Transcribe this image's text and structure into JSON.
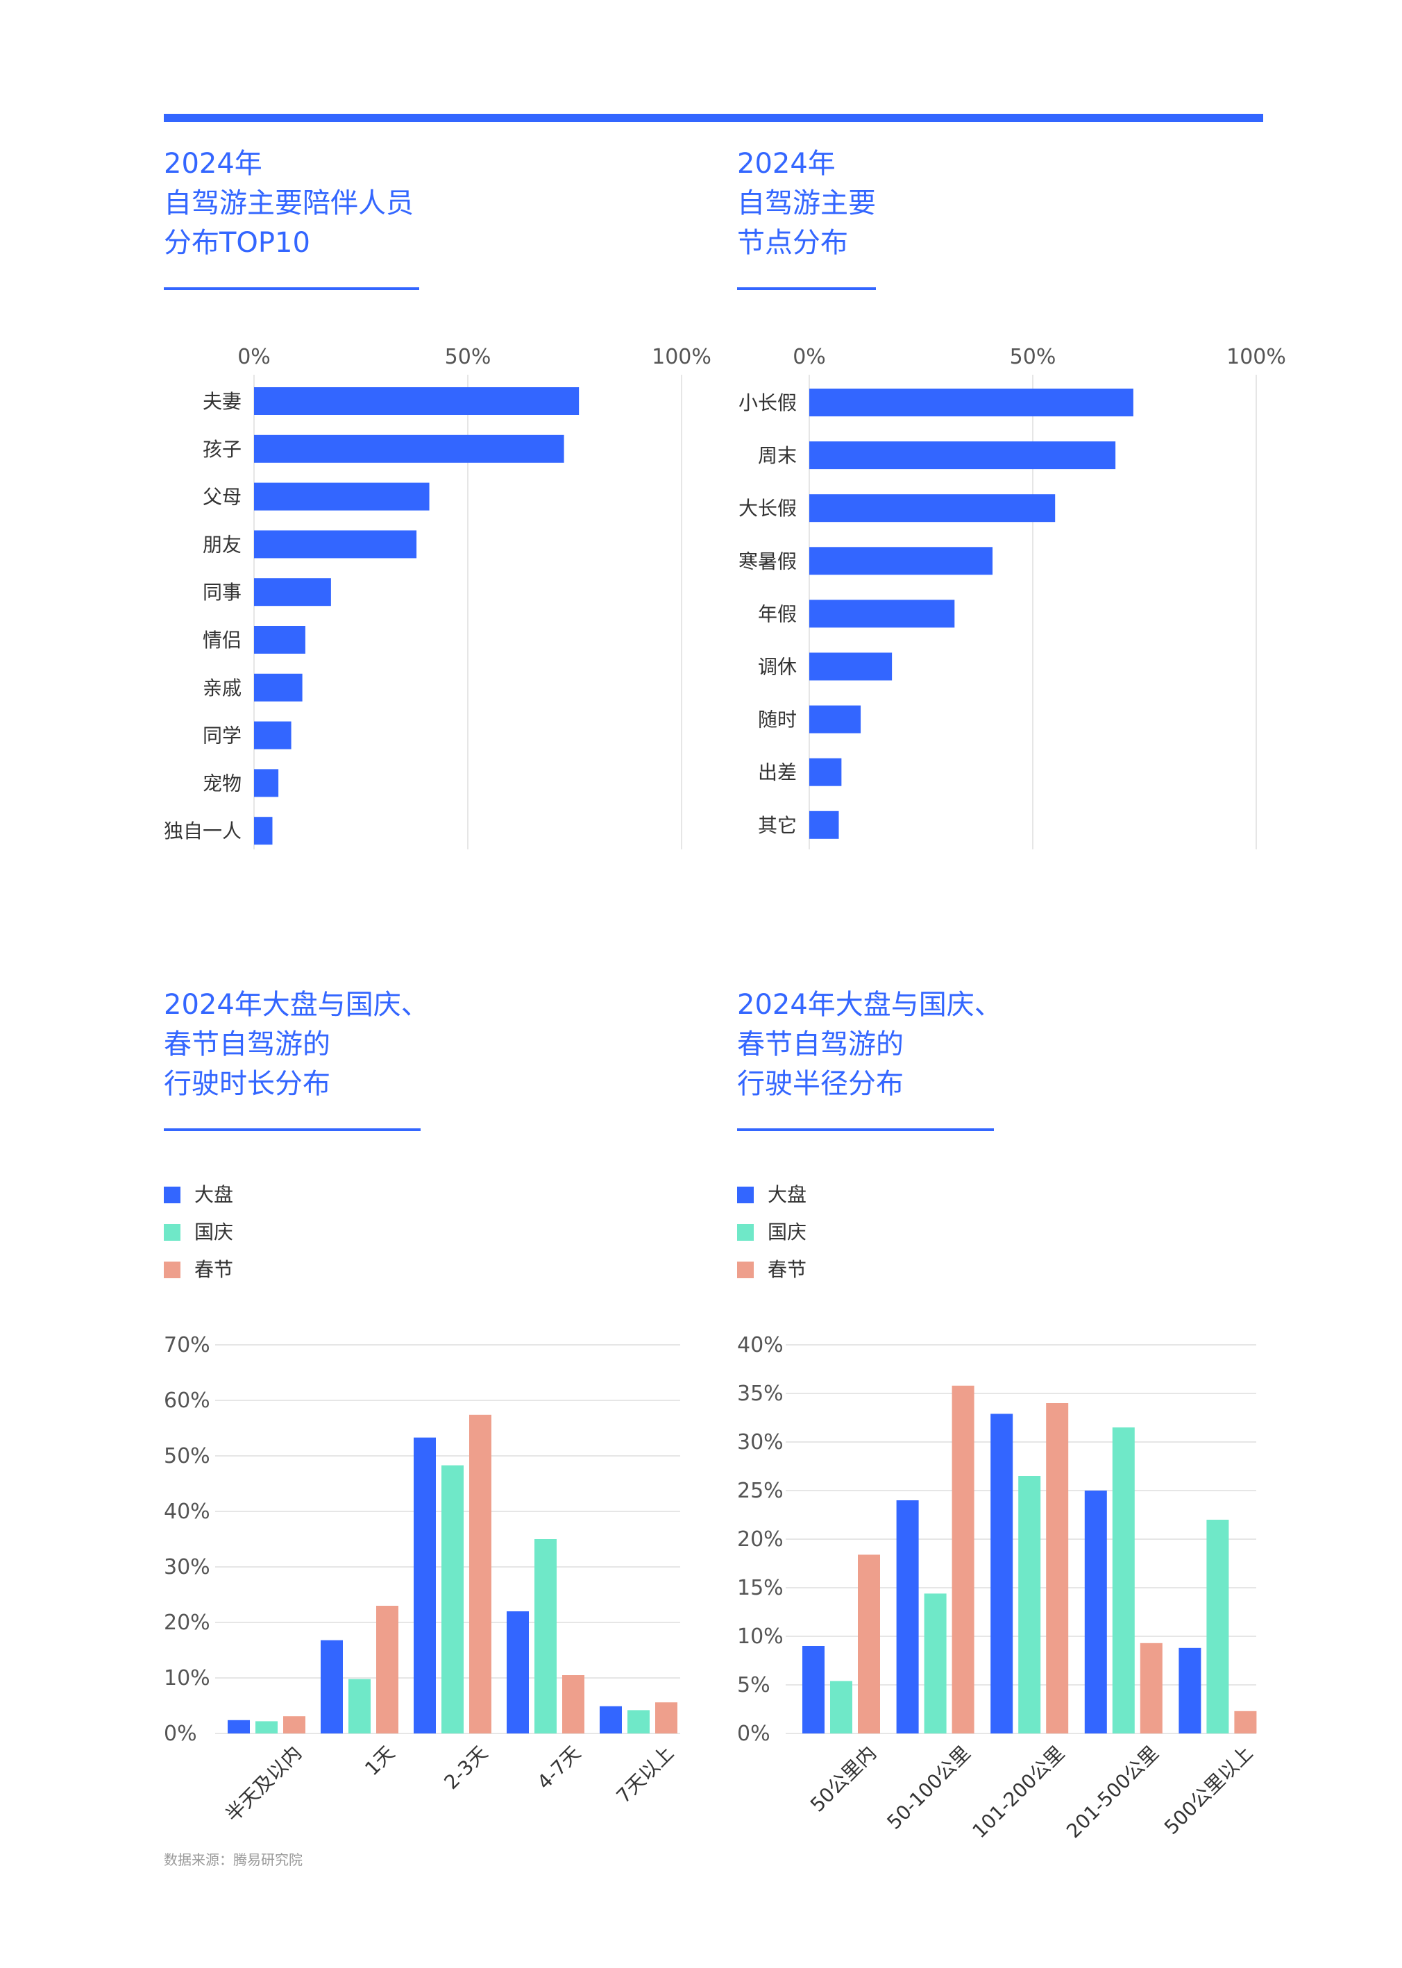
{
  "source": "数据来源：腾易研究院",
  "colors": {
    "accent": "#3366FF",
    "dapan": "#3366FF",
    "guoqing": "#6FE8C8",
    "chunjie": "#EE9F8C",
    "grid": "#E6E6E6",
    "text": "#555555"
  },
  "chart_data": [
    {
      "type": "bar",
      "orientation": "horizontal",
      "title_lines": [
        "2024年",
        "自驾游主要陪伴人员",
        "分布TOP10"
      ],
      "categories": [
        "夫妻",
        "孩子",
        "父母",
        "朋友",
        "同事",
        "情侣",
        "亲戚",
        "同学",
        "宠物",
        "独自一人"
      ],
      "values": [
        76,
        72.5,
        41,
        38,
        18,
        12,
        11.3,
        8.7,
        5.7,
        4.3
      ],
      "ticks": [
        "0%",
        "50%",
        "100%"
      ],
      "xlim": [
        0,
        100
      ],
      "grid": true
    },
    {
      "type": "bar",
      "orientation": "horizontal",
      "title_lines": [
        "2024年",
        "自驾游主要",
        "节点分布"
      ],
      "categories": [
        "小长假",
        "周末",
        "大长假",
        "寒暑假",
        "年假",
        "调休",
        "随时",
        "出差",
        "其它"
      ],
      "values": [
        72.5,
        68.5,
        55,
        41,
        32.5,
        18.5,
        11.5,
        7.2,
        6.6
      ],
      "ticks": [
        "0%",
        "50%",
        "100%"
      ],
      "xlim": [
        0,
        100
      ],
      "grid": true
    },
    {
      "type": "bar",
      "title_lines": [
        "2024年大盘与国庆、",
        "春节自驾游的",
        "行驶时长分布"
      ],
      "categories": [
        "半天及以内",
        "1天",
        "2-3天",
        "4-7天",
        "7天以上"
      ],
      "series": [
        {
          "name": "大盘",
          "values": [
            2.4,
            16.8,
            53.3,
            22,
            4.9
          ]
        },
        {
          "name": "国庆",
          "values": [
            2.2,
            9.8,
            48.3,
            35,
            4.2
          ]
        },
        {
          "name": "春节",
          "values": [
            3.1,
            23,
            57.4,
            10.5,
            5.6
          ]
        }
      ],
      "yticks": [
        "0%",
        "10%",
        "20%",
        "30%",
        "40%",
        "50%",
        "60%",
        "70%"
      ],
      "ylim": [
        0,
        70
      ],
      "legend": "top-left",
      "grid": true
    },
    {
      "type": "bar",
      "title_lines": [
        "2024年大盘与国庆、",
        "春节自驾游的",
        "行驶半径分布"
      ],
      "categories": [
        "50公里内",
        "50-100公里",
        "101-200公里",
        "201-500公里",
        "500公里以上"
      ],
      "series": [
        {
          "name": "大盘",
          "values": [
            9,
            24,
            32.9,
            25,
            8.8
          ]
        },
        {
          "name": "国庆",
          "values": [
            5.4,
            14.4,
            26.5,
            31.5,
            22
          ]
        },
        {
          "name": "春节",
          "values": [
            18.4,
            35.8,
            34,
            9.3,
            2.3
          ]
        }
      ],
      "yticks": [
        "0%",
        "5%",
        "10%",
        "15%",
        "20%",
        "25%",
        "30%",
        "35%",
        "40%"
      ],
      "ylim": [
        0,
        40
      ],
      "legend": "top-left",
      "grid": true
    }
  ]
}
